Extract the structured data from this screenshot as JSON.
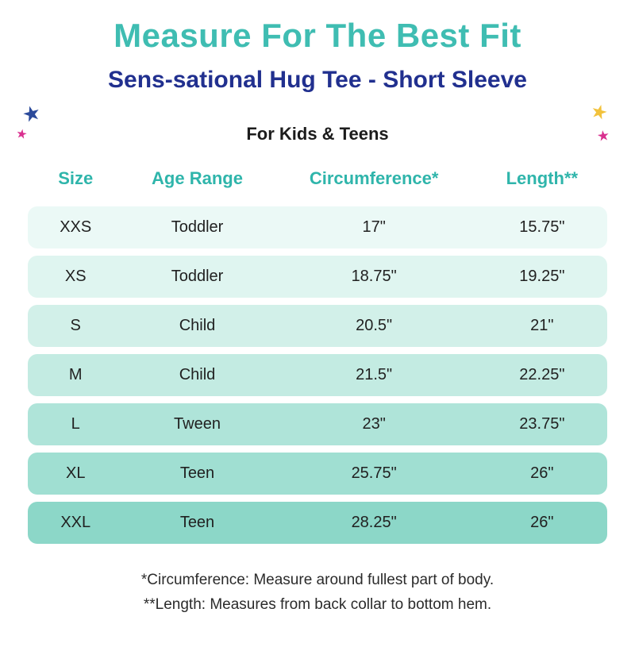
{
  "header": {
    "title": "Measure For The Best Fit",
    "subtitle": "Sens-sational Hug Tee - Short Sleeve",
    "audience": "For Kids & Teens"
  },
  "decorations": {
    "star_glyph": "★",
    "star_blue_color": "#2B4A9B",
    "star_magenta_color": "#D9308F",
    "star_yellow_color": "#F2C23C"
  },
  "colors": {
    "title_teal": "#3FBDB2",
    "subtitle_navy": "#21308F",
    "header_teal": "#2FB5AB",
    "row_text": "#212121"
  },
  "table": {
    "columns": [
      "Size",
      "Age Range",
      "Circumference*",
      "Length**"
    ],
    "rows": [
      {
        "size": "XXS",
        "age": "Toddler",
        "circumference": "17\"",
        "length": "15.75\""
      },
      {
        "size": "XS",
        "age": "Toddler",
        "circumference": "18.75\"",
        "length": "19.25\""
      },
      {
        "size": "S",
        "age": "Child",
        "circumference": "20.5\"",
        "length": "21\""
      },
      {
        "size": "M",
        "age": "Child",
        "circumference": "21.5\"",
        "length": "22.25\""
      },
      {
        "size": "L",
        "age": "Tween",
        "circumference": "23\"",
        "length": "23.75\""
      },
      {
        "size": "XL",
        "age": "Teen",
        "circumference": "25.75\"",
        "length": "26\""
      },
      {
        "size": "XXL",
        "age": "Teen",
        "circumference": "28.25\"",
        "length": "26\""
      }
    ],
    "row_colors": [
      "#EBF9F6",
      "#DFF5F0",
      "#D2F0E9",
      "#C3EBE2",
      "#AFE4D9",
      "#A0DFD2",
      "#8CD7C8"
    ]
  },
  "footnotes": {
    "circumference": "*Circumference: Measure around fullest part of body.",
    "length": "**Length: Measures from back collar to bottom hem."
  },
  "chart_data": {
    "type": "table",
    "title": "Measure For The Best Fit",
    "subtitle": "Sens-sational Hug Tee - Short Sleeve",
    "audience": "For Kids & Teens",
    "columns": [
      "Size",
      "Age Range",
      "Circumference*",
      "Length**"
    ],
    "rows": [
      [
        "XXS",
        "Toddler",
        "17\"",
        "15.75\""
      ],
      [
        "XS",
        "Toddler",
        "18.75\"",
        "19.25\""
      ],
      [
        "S",
        "Child",
        "20.5\"",
        "21\""
      ],
      [
        "M",
        "Child",
        "21.5\"",
        "22.25\""
      ],
      [
        "L",
        "Tween",
        "23\"",
        "23.75\""
      ],
      [
        "XL",
        "Teen",
        "25.75\"",
        "26\""
      ],
      [
        "XXL",
        "Teen",
        "28.25\"",
        "26\""
      ]
    ],
    "notes": [
      "*Circumference: Measure around fullest part of body.",
      "**Length: Measures from back collar to bottom hem."
    ]
  }
}
